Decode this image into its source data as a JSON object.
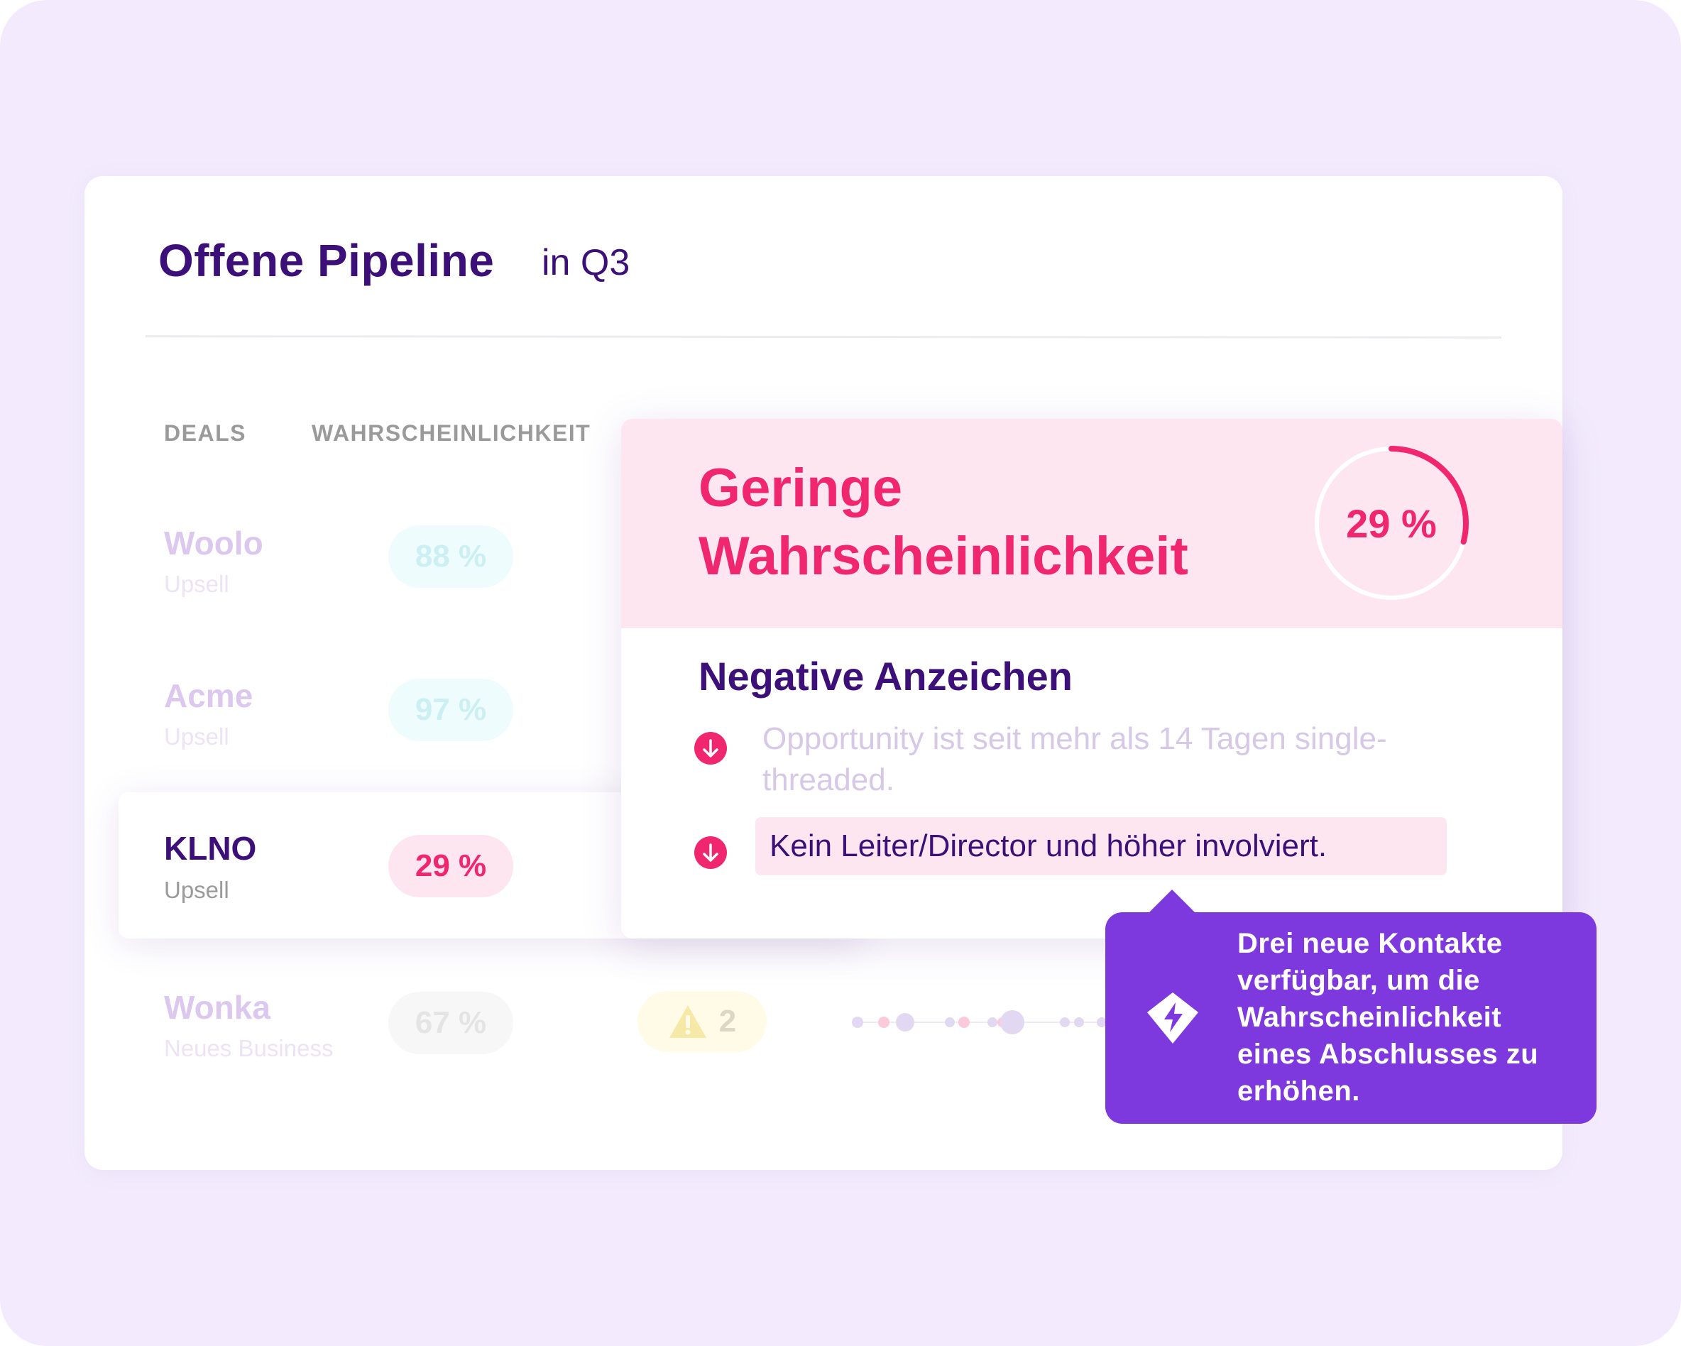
{
  "header": {
    "title": "Offene Pipeline",
    "subtitle": "in Q3"
  },
  "table": {
    "columns": [
      "DEALS",
      "WAHRSCHEINLICHKEIT"
    ],
    "rows": [
      {
        "name": "Woolo",
        "type": "Upsell",
        "probability": "88 %"
      },
      {
        "name": "Acme",
        "type": "Upsell",
        "probability": "97 %"
      },
      {
        "name": "KLNO",
        "type": "Upsell",
        "probability": "29 %"
      },
      {
        "name": "Wonka",
        "type": "Neues Business",
        "probability": "67 %",
        "warnings": "2"
      }
    ]
  },
  "popup": {
    "title": "Geringe Wahrscheinlichkeit",
    "probability_label": "29 %",
    "probability_value": 0.29,
    "section_title": "Negative Anzeichen",
    "signals": [
      "Opportunity ist seit mehr als 14 Tagen single-threaded.",
      "Kein Leiter/Director und höher involviert."
    ]
  },
  "tooltip": {
    "text": "Drei neue Kontakte verfügbar, um die Wahrscheinlichkeit eines Abschlusses zu erhöhen."
  },
  "icons": [
    "arrow-down-icon",
    "warning-icon",
    "lightning-diamond-icon"
  ],
  "colors": {
    "background": "#f3ebfd",
    "brand_purple": "#3d0f78",
    "accent_pink": "#f0266e",
    "pink_tint": "#fde6ef",
    "tooltip_purple": "#7e39de"
  }
}
